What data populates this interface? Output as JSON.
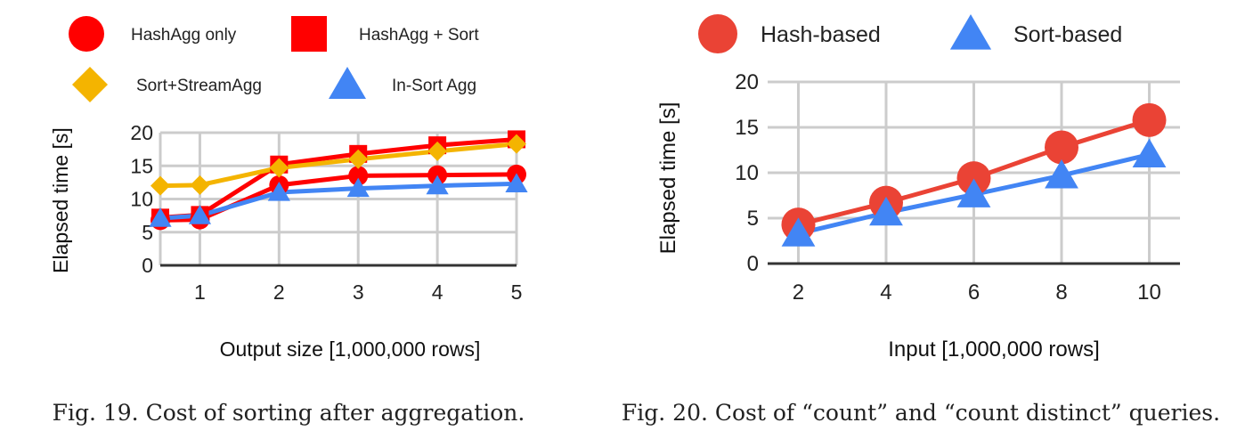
{
  "chart_data": [
    {
      "type": "line",
      "caption": "Fig. 19.  Cost of sorting after aggregation.",
      "title": "",
      "xlabel": "Output size [1,000,000 rows]",
      "ylabel": "Elapsed time [s]",
      "ylim": [
        0,
        20
      ],
      "yticks": [
        "0",
        "5",
        "10",
        "15",
        "20"
      ],
      "xticks": [
        "1",
        "2",
        "3",
        "4",
        "5"
      ],
      "grid": true,
      "legend_position": "top",
      "x": [
        0.5,
        1,
        2,
        3,
        4,
        5
      ],
      "series": [
        {
          "name": "HashAgg only",
          "marker": "circle",
          "color": "#ff0000",
          "values": [
            6.8,
            6.9,
            12.1,
            13.5,
            13.6,
            13.7
          ]
        },
        {
          "name": "HashAgg + Sort",
          "marker": "square",
          "color": "#ff0000",
          "values": [
            7.2,
            7.6,
            15.2,
            16.8,
            18.1,
            19.0
          ]
        },
        {
          "name": "Sort+StreamAgg",
          "marker": "diamond",
          "color": "#f4b400",
          "values": [
            12.0,
            12.1,
            14.7,
            16.0,
            17.2,
            18.3
          ]
        },
        {
          "name": "In-Sort Agg",
          "marker": "triangle",
          "color": "#4285f4",
          "values": [
            7.1,
            7.5,
            11.0,
            11.6,
            12.0,
            12.3
          ]
        }
      ]
    },
    {
      "type": "line",
      "caption": "Fig. 20.  Cost of “count” and “count distinct” queries.",
      "title": "",
      "xlabel": "Input [1,000,000 rows]",
      "ylabel": "Elapsed time [s]",
      "ylim": [
        0,
        20
      ],
      "yticks": [
        "0",
        "5",
        "10",
        "15",
        "20"
      ],
      "xticks": [
        "2",
        "4",
        "6",
        "8",
        "10"
      ],
      "grid": true,
      "legend_position": "top",
      "x": [
        2,
        4,
        6,
        8,
        10
      ],
      "series": [
        {
          "name": "Hash-based",
          "marker": "circle",
          "color": "#ea4335",
          "values": [
            4.3,
            6.7,
            9.4,
            12.8,
            15.8
          ]
        },
        {
          "name": "Sort-based",
          "marker": "triangle",
          "color": "#4285f4",
          "values": [
            3.3,
            5.6,
            7.6,
            9.7,
            12.0
          ]
        }
      ]
    }
  ]
}
